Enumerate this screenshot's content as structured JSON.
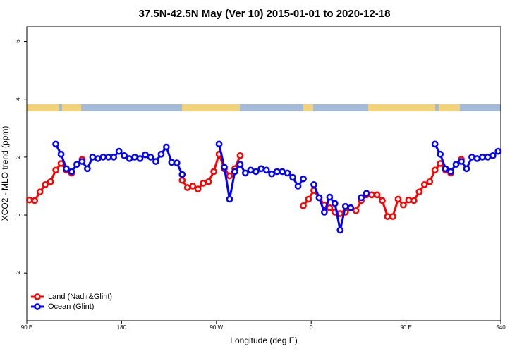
{
  "chart_data": {
    "type": "line",
    "title": "37.5N-42.5N May (Ver 10)   2015-01-01 to 2020-12-18",
    "x_label": "Longitude (deg E)",
    "y_label": "XCO2 - MLO trend (ppm)",
    "x": [
      92.5,
      97.5,
      102.5,
      107.5,
      112.5,
      117.5,
      122.5,
      127.5,
      132.5,
      137.5,
      142.5,
      147.5,
      152.5,
      157.5,
      162.5,
      167.5,
      172.5,
      177.5,
      182.5,
      187.5,
      192.5,
      197.5,
      202.5,
      207.5,
      212.5,
      217.5,
      222.5,
      227.5,
      232.5,
      237.5,
      242.5,
      247.5,
      252.5,
      257.5,
      262.5,
      267.5,
      272.5,
      277.5,
      282.5,
      287.5,
      292.5,
      297.5,
      302.5,
      307.5,
      312.5,
      317.5,
      322.5,
      327.5,
      332.5,
      337.5,
      342.5,
      347.5,
      352.5,
      357.5,
      362.5,
      367.5,
      372.5,
      377.5,
      382.5,
      387.5,
      392.5,
      397.5,
      402.5,
      407.5,
      412.5,
      417.5,
      422.5,
      427.5,
      432.5,
      437.5,
      442.5,
      447.5,
      452.5,
      457.5,
      462.5,
      467.5,
      472.5,
      477.5,
      482.5,
      487.5,
      492.5,
      497.5,
      502.5,
      507.5,
      512.5,
      517.5,
      522.5,
      527.5,
      532.5,
      537.5
    ],
    "series": [
      {
        "name": "Land (Nadir&Glint)",
        "color": "#ff0000",
        "values": [
          0.52,
          0.5,
          0.8,
          1.05,
          1.15,
          1.55,
          1.78,
          1.55,
          1.45,
          null,
          1.92,
          null,
          null,
          null,
          null,
          null,
          null,
          null,
          null,
          null,
          null,
          null,
          null,
          null,
          null,
          null,
          null,
          null,
          null,
          1.2,
          0.95,
          1.0,
          0.9,
          1.1,
          1.15,
          1.5,
          2.1,
          1.6,
          1.35,
          1.6,
          2.05,
          null,
          null,
          null,
          null,
          null,
          null,
          null,
          null,
          null,
          null,
          null,
          0.32,
          0.55,
          0.85,
          0.6,
          0.35,
          0.25,
          0.1,
          0.05,
          0.1,
          0.25,
          0.15,
          0.5,
          0.7,
          0.7,
          0.7,
          0.5,
          -0.05,
          -0.05,
          0.55,
          0.35,
          0.52,
          0.5,
          0.8,
          1.05,
          1.15,
          1.55,
          1.78,
          1.55,
          1.45,
          null,
          1.92,
          null,
          null,
          null,
          null,
          null,
          null,
          null
        ]
      },
      {
        "name": "Ocean (Glint)",
        "color": "#0000ff",
        "values": [
          null,
          null,
          null,
          null,
          null,
          2.45,
          2.1,
          1.6,
          1.5,
          1.75,
          1.85,
          1.6,
          2.0,
          1.95,
          2.0,
          2.0,
          2.0,
          2.2,
          2.05,
          1.95,
          2.0,
          1.95,
          2.08,
          2.0,
          1.85,
          2.1,
          2.35,
          1.82,
          1.8,
          1.4,
          null,
          null,
          null,
          null,
          null,
          null,
          2.45,
          1.65,
          0.55,
          1.5,
          1.75,
          1.45,
          1.55,
          1.5,
          1.6,
          1.55,
          1.42,
          1.5,
          1.5,
          1.45,
          1.3,
          1.0,
          1.25,
          null,
          1.05,
          0.6,
          0.1,
          0.62,
          0.4,
          -0.52,
          0.3,
          0.25,
          null,
          0.6,
          0.75,
          null,
          null,
          null,
          null,
          null,
          null,
          null,
          null,
          null,
          null,
          null,
          null,
          2.45,
          2.1,
          1.6,
          1.5,
          1.75,
          1.85,
          1.6,
          2.0,
          1.95,
          2.0,
          2.0,
          2.05,
          2.2
        ]
      }
    ],
    "xlim": [
      90,
      540
    ],
    "xticks": [
      {
        "value": 90,
        "label": "90 E"
      },
      180,
      {
        "value": 270,
        "label": "90 W"
      },
      {
        "value": 360,
        "label": "0"
      },
      {
        "value": 450,
        "label": "90 E"
      },
      540
    ],
    "ylim": [
      -3.65,
      6.5
    ],
    "yticks": [
      -2,
      0,
      2,
      4,
      6
    ],
    "legend": "bottomleft"
  }
}
